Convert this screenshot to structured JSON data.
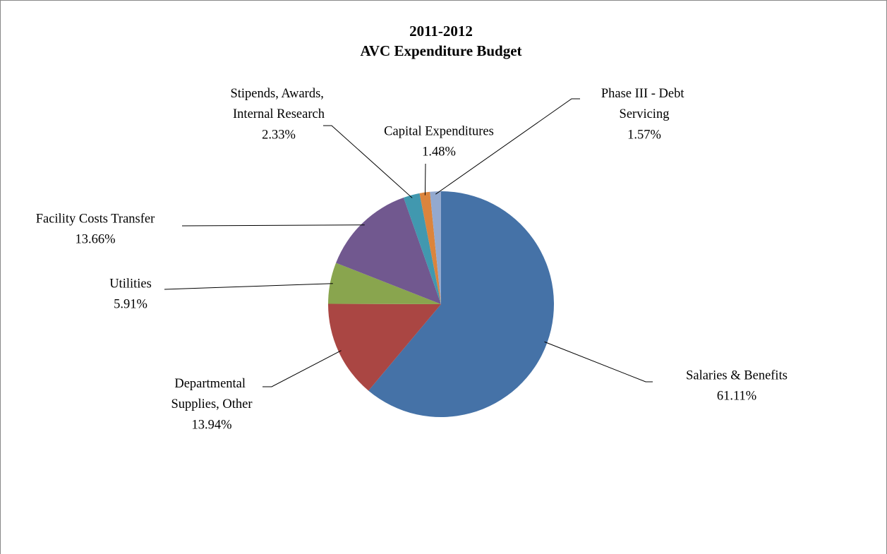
{
  "chart_data": {
    "type": "pie",
    "title": "2011-2012",
    "subtitle": "AVC Expenditure Budget",
    "categories": [
      "Salaries & Benefits",
      "Departmental Supplies, Other",
      "Utilities",
      "Facility Costs Transfer",
      "Stipends, Awards, Internal Research",
      "Capital Expenditures",
      "Phase III - Debt Servicing"
    ],
    "values": [
      61.11,
      13.94,
      5.91,
      13.66,
      2.33,
      1.48,
      1.57
    ],
    "value_labels": [
      "61.11%",
      "13.94%",
      "5.91%",
      "13.66%",
      "2.33%",
      "1.48%",
      "1.57%"
    ],
    "colors": [
      "#4572a7",
      "#aa4643",
      "#89a54e",
      "#71588f",
      "#4198af",
      "#db843d",
      "#93a9cf"
    ]
  }
}
